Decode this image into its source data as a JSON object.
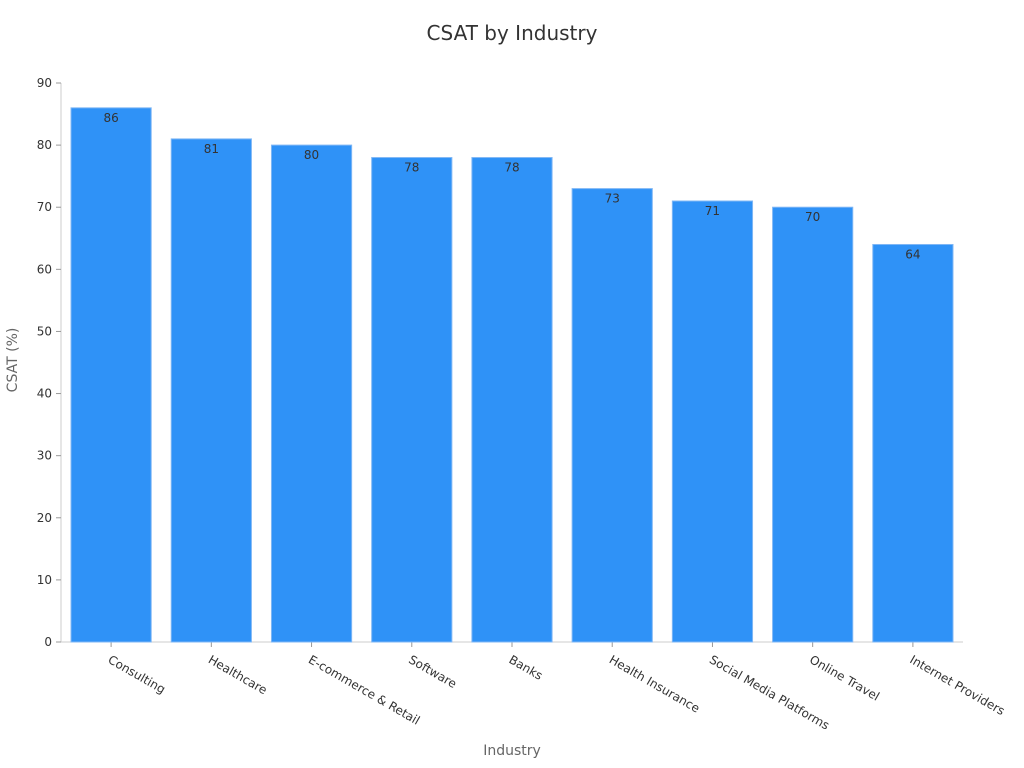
{
  "chart_data": {
    "type": "bar",
    "title": "CSAT by Industry",
    "xlabel": "Industry",
    "ylabel": "CSAT (%)",
    "categories": [
      "Consulting",
      "Healthcare",
      "E-commerce & Retail",
      "Software",
      "Banks",
      "Health Insurance",
      "Social Media Platforms",
      "Online Travel",
      "Internet Providers"
    ],
    "values": [
      86,
      81,
      80,
      78,
      78,
      73,
      71,
      70,
      64
    ],
    "ylim": [
      0,
      90
    ],
    "yticks": [
      0,
      10,
      20,
      30,
      40,
      50,
      60,
      70,
      80,
      90
    ],
    "bar_color": "#2f92f7",
    "grid": false,
    "legend": "none"
  }
}
